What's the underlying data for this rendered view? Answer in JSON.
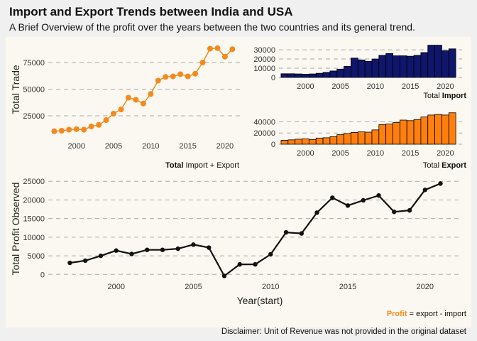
{
  "title": "Import and Export Trends between India and USA",
  "subtitle": "A Brief Overview of the profit over the years between the two countries and its general trend.",
  "disclaimer": "Disclaimer: Unit of Revenue was not provided in the original dataset",
  "colors": {
    "page_bg": "#f0f0f0",
    "panel_bg": "#faf8f0",
    "total": "#f28a1e",
    "import": "#0f166b",
    "export": "#ff7f0e",
    "profit": "#111111",
    "grid": "#aaaaaa"
  },
  "chart_data": [
    {
      "type": "line",
      "ylabel": "Total Trade",
      "caption": {
        "bold": "Total",
        "rest": " Import + Export"
      },
      "xlim": [
        1996.2,
        2022.4
      ],
      "ylim": [
        5000,
        95000
      ],
      "x_ticks": [
        2000,
        2005,
        2010,
        2015,
        2020
      ],
      "y_ticks": [
        25000,
        50000,
        75000
      ],
      "y_tick_labels": [
        "25000",
        "50000",
        "75000"
      ],
      "series": [
        {
          "x": [
            1997,
            1998,
            1999,
            2000,
            2001,
            2002,
            2003,
            2004,
            2005,
            2006,
            2007,
            2008,
            2009,
            2010,
            2011,
            2012,
            2013,
            2014,
            2015,
            2016,
            2017,
            2018,
            2019,
            2020,
            2021
          ],
          "values": [
            10500,
            11000,
            12000,
            12500,
            12000,
            15000,
            16500,
            21000,
            27000,
            31000,
            42000,
            40000,
            36500,
            45500,
            58000,
            61500,
            62000,
            64000,
            62000,
            64500,
            75000,
            88000,
            88500,
            80500,
            87500
          ]
        }
      ]
    },
    {
      "type": "bar",
      "caption": {
        "bold": "Import",
        "rest": "Total "
      },
      "xlim": [
        1996.2,
        2022.4
      ],
      "ylim": [
        0,
        37000
      ],
      "x_ticks": [
        2000,
        2005,
        2010,
        2015,
        2020
      ],
      "y_ticks": [
        0,
        10000,
        20000,
        30000
      ],
      "y_tick_labels": [
        "0",
        "10000",
        "20000",
        "30000"
      ],
      "series": [
        {
          "x": [
            1997,
            1998,
            1999,
            2000,
            2001,
            2002,
            2003,
            2004,
            2005,
            2006,
            2007,
            2008,
            2009,
            2010,
            2011,
            2012,
            2013,
            2014,
            2015,
            2016,
            2017,
            2018,
            2019,
            2020,
            2021
          ],
          "values": [
            4000,
            4000,
            3800,
            3500,
            3800,
            4500,
            5500,
            7000,
            9000,
            12000,
            21000,
            19000,
            17500,
            20000,
            24000,
            26000,
            23500,
            23500,
            23000,
            24000,
            27000,
            35000,
            35000,
            29000,
            31000
          ]
        }
      ]
    },
    {
      "type": "bar",
      "caption": {
        "bold": "Export",
        "rest": "Total "
      },
      "xlim": [
        1996.2,
        2022.4
      ],
      "ylim": [
        0,
        62000
      ],
      "x_ticks": [
        2000,
        2005,
        2010,
        2015,
        2020
      ],
      "y_ticks": [
        0,
        20000,
        40000
      ],
      "y_tick_labels": [
        "0",
        "20000",
        "40000"
      ],
      "series": [
        {
          "x": [
            1997,
            1998,
            1999,
            2000,
            2001,
            2002,
            2003,
            2004,
            2005,
            2006,
            2007,
            2008,
            2009,
            2010,
            2011,
            2012,
            2013,
            2014,
            2015,
            2016,
            2017,
            2018,
            2019,
            2020,
            2021
          ],
          "values": [
            7000,
            7800,
            9000,
            9500,
            8500,
            11000,
            11500,
            13500,
            17000,
            19000,
            21000,
            22000,
            21500,
            25500,
            35000,
            36000,
            38500,
            43000,
            42000,
            44000,
            48500,
            52000,
            53000,
            52000,
            56000
          ]
        }
      ]
    },
    {
      "type": "line",
      "xlabel": "Year(start)",
      "ylabel": "Total Profit Observed",
      "caption": {
        "bold": "Profit",
        "rest": " = export - import"
      },
      "xlim": [
        1995.6,
        2022.4
      ],
      "ylim": [
        -900,
        26000
      ],
      "x_ticks": [
        2000,
        2005,
        2010,
        2015,
        2020
      ],
      "y_ticks": [
        0,
        5000,
        10000,
        15000,
        20000,
        25000
      ],
      "y_tick_labels": [
        "0",
        "5000",
        "10000",
        "15000",
        "20000",
        "25000"
      ],
      "series": [
        {
          "x": [
            1997,
            1998,
            1999,
            2000,
            2001,
            2002,
            2003,
            2004,
            2005,
            2006,
            2007,
            2008,
            2009,
            2010,
            2011,
            2012,
            2013,
            2014,
            2015,
            2016,
            2017,
            2018,
            2019,
            2020,
            2021
          ],
          "values": [
            3100,
            3700,
            5000,
            6400,
            5500,
            6600,
            6600,
            6900,
            8000,
            7200,
            -400,
            2700,
            2700,
            5400,
            11300,
            11000,
            16600,
            20600,
            18500,
            19900,
            21200,
            16800,
            17200,
            22700,
            24400
          ]
        }
      ]
    }
  ]
}
